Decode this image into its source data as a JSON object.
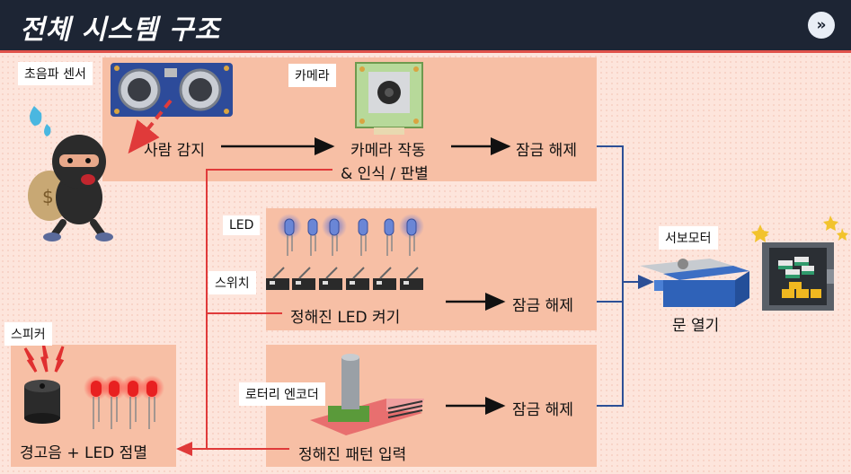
{
  "header": {
    "title": "전체 시스템 구조",
    "next_icon": "»"
  },
  "labels": {
    "ultrasonic": "초음파 센서",
    "camera": "카메라",
    "led": "LED",
    "switch": "스위치",
    "speaker": "스피커",
    "servo": "서보모터",
    "encoder": "로터리 엔코더"
  },
  "flow": {
    "detect": "사람 감지",
    "camera_action": "카메라 작동",
    "recognize": "& 인식 / 판별",
    "unlock1": "잠금 해제",
    "led_step": "정해진 LED 켜기",
    "unlock2": "잠금 해제",
    "pattern": "정해진 패턴 입력",
    "unlock3": "잠금 해제",
    "alarm": "경고음 + LED 점멸",
    "door": "문 열기"
  },
  "colors": {
    "header": "#1d2534",
    "panel": "#f7bfa5",
    "red_line": "#e03a3a",
    "blue_line": "#2c4f96"
  }
}
